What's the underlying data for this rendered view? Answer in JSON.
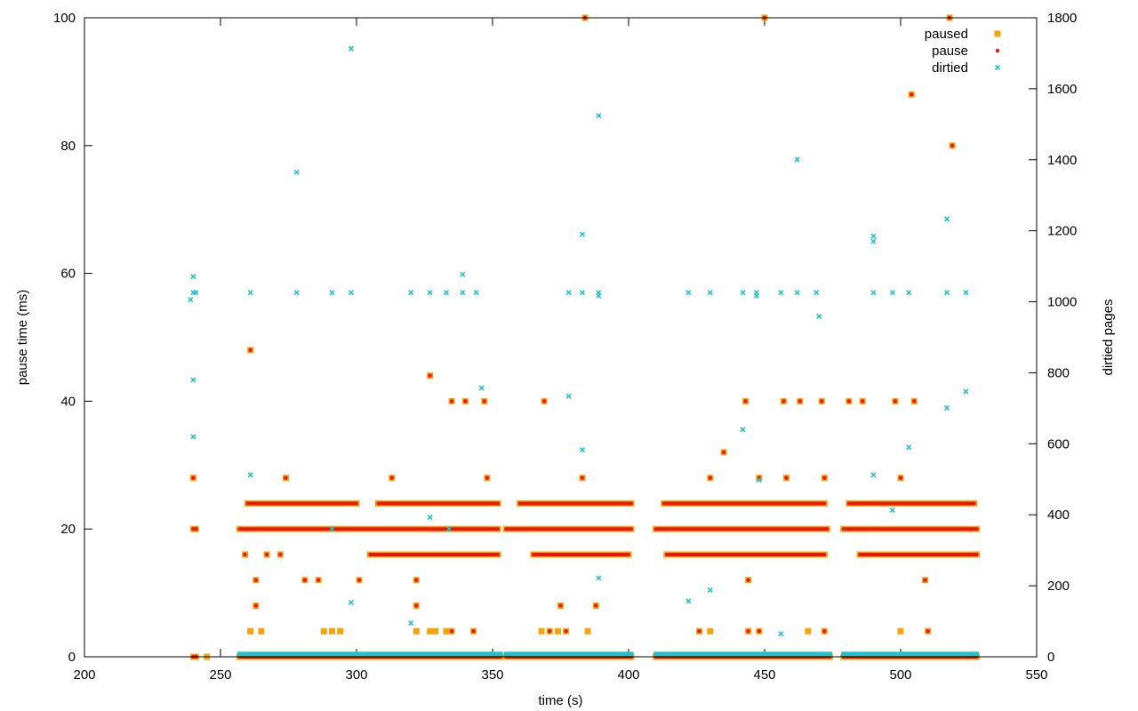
{
  "chart_data": {
    "type": "scatter",
    "xlabel": "time (s)",
    "ylabel": "pause time (ms)",
    "y2label": "dirtied pages",
    "xlim": [
      200,
      550
    ],
    "ylim": [
      0,
      100
    ],
    "y2lim": [
      0,
      1800
    ],
    "x_ticks": [
      200,
      250,
      300,
      350,
      400,
      450,
      500,
      550
    ],
    "y_ticks": [
      0,
      20,
      40,
      60,
      80,
      100
    ],
    "y2_ticks": [
      0,
      200,
      400,
      600,
      800,
      1000,
      1200,
      1400,
      1600,
      1800
    ],
    "legend_position": "top-right",
    "grid": false,
    "colors": {
      "paused": "#f5a30a",
      "pause": "#e8170c",
      "dirtied": "#1fc2c8"
    },
    "series": [
      {
        "name": "paused",
        "axis": "y",
        "marker": "square",
        "points": [
          [
            240,
            28
          ],
          [
            240,
            20
          ],
          [
            241,
            20
          ],
          [
            240,
            0
          ],
          [
            241,
            0
          ],
          [
            245,
            0
          ],
          [
            261,
            48
          ],
          [
            263,
            12
          ],
          [
            263,
            8
          ],
          [
            261,
            4
          ],
          [
            265,
            4
          ],
          [
            259,
            16
          ],
          [
            267,
            16
          ],
          [
            272,
            16
          ],
          [
            260,
            24
          ],
          [
            274,
            28
          ],
          [
            281,
            12
          ],
          [
            286,
            12
          ],
          [
            288,
            4
          ],
          [
            291,
            4
          ],
          [
            294,
            4
          ],
          [
            301,
            12
          ],
          [
            313,
            28
          ],
          [
            322,
            12
          ],
          [
            322,
            8
          ],
          [
            322,
            4
          ],
          [
            327,
            44
          ],
          [
            327,
            4
          ],
          [
            329,
            4
          ],
          [
            333,
            4
          ],
          [
            335,
            4
          ],
          [
            335,
            40
          ],
          [
            340,
            40
          ],
          [
            343,
            4
          ],
          [
            347,
            40
          ],
          [
            348,
            28
          ],
          [
            369,
            40
          ],
          [
            368,
            4
          ],
          [
            371,
            4
          ],
          [
            375,
            8
          ],
          [
            374,
            4
          ],
          [
            377,
            4
          ],
          [
            383,
            28
          ],
          [
            385,
            4
          ],
          [
            384,
            100
          ],
          [
            388,
            8
          ],
          [
            426,
            4
          ],
          [
            430,
            28
          ],
          [
            430,
            4
          ],
          [
            435,
            32
          ],
          [
            443,
            40
          ],
          [
            444,
            12
          ],
          [
            444,
            4
          ],
          [
            448,
            28
          ],
          [
            448,
            4
          ],
          [
            450,
            100
          ],
          [
            457,
            40
          ],
          [
            458,
            28
          ],
          [
            463,
            40
          ],
          [
            466,
            4
          ],
          [
            471,
            40
          ],
          [
            472,
            28
          ],
          [
            472,
            4
          ],
          [
            481,
            40
          ],
          [
            486,
            40
          ],
          [
            498,
            40
          ],
          [
            500,
            28
          ],
          [
            500,
            4
          ],
          [
            504,
            88
          ],
          [
            505,
            40
          ],
          [
            509,
            12
          ],
          [
            510,
            4
          ],
          [
            518,
            100
          ],
          [
            519,
            80
          ]
        ],
        "bands": [
          {
            "y": 0,
            "segments": [
              [
                257,
                353
              ],
              [
                355,
                401
              ],
              [
                410,
                474
              ],
              [
                479,
                528
              ]
            ]
          },
          {
            "y": 16,
            "segments": [
              [
                305,
                352
              ],
              [
                365,
                400
              ],
              [
                414,
                472
              ],
              [
                485,
                528
              ]
            ]
          },
          {
            "y": 20,
            "segments": [
              [
                257,
                352
              ],
              [
                355,
                401
              ],
              [
                410,
                473
              ],
              [
                479,
                528
              ]
            ]
          },
          {
            "y": 24,
            "segments": [
              [
                260,
                300
              ],
              [
                308,
                352
              ],
              [
                360,
                401
              ],
              [
                413,
                472
              ],
              [
                481,
                527
              ]
            ]
          }
        ]
      },
      {
        "name": "pause",
        "axis": "y",
        "marker": "dot",
        "points": [
          [
            240,
            28
          ],
          [
            240,
            20
          ],
          [
            241,
            20
          ],
          [
            240,
            0
          ],
          [
            241,
            0
          ],
          [
            261,
            48
          ],
          [
            263,
            12
          ],
          [
            263,
            8
          ],
          [
            259,
            16
          ],
          [
            267,
            16
          ],
          [
            272,
            16
          ],
          [
            260,
            24
          ],
          [
            274,
            28
          ],
          [
            281,
            12
          ],
          [
            286,
            12
          ],
          [
            301,
            12
          ],
          [
            313,
            28
          ],
          [
            322,
            12
          ],
          [
            322,
            8
          ],
          [
            327,
            44
          ],
          [
            335,
            4
          ],
          [
            335,
            40
          ],
          [
            340,
            40
          ],
          [
            343,
            4
          ],
          [
            347,
            40
          ],
          [
            348,
            28
          ],
          [
            369,
            40
          ],
          [
            371,
            4
          ],
          [
            375,
            8
          ],
          [
            377,
            4
          ],
          [
            383,
            28
          ],
          [
            384,
            100
          ],
          [
            388,
            8
          ],
          [
            426,
            4
          ],
          [
            430,
            28
          ],
          [
            435,
            32
          ],
          [
            443,
            40
          ],
          [
            444,
            12
          ],
          [
            444,
            4
          ],
          [
            448,
            28
          ],
          [
            448,
            4
          ],
          [
            450,
            100
          ],
          [
            457,
            40
          ],
          [
            458,
            28
          ],
          [
            463,
            40
          ],
          [
            471,
            40
          ],
          [
            472,
            28
          ],
          [
            472,
            4
          ],
          [
            481,
            40
          ],
          [
            486,
            40
          ],
          [
            498,
            40
          ],
          [
            500,
            28
          ],
          [
            504,
            88
          ],
          [
            505,
            40
          ],
          [
            509,
            12
          ],
          [
            510,
            4
          ],
          [
            518,
            100
          ],
          [
            519,
            80
          ]
        ],
        "bands": [
          {
            "y": 0,
            "segments": [
              [
                257,
                353
              ],
              [
                355,
                401
              ],
              [
                410,
                474
              ],
              [
                479,
                528
              ]
            ]
          },
          {
            "y": 16,
            "segments": [
              [
                305,
                352
              ],
              [
                365,
                400
              ],
              [
                414,
                472
              ],
              [
                485,
                528
              ]
            ]
          },
          {
            "y": 20,
            "segments": [
              [
                257,
                352
              ],
              [
                355,
                401
              ],
              [
                410,
                473
              ],
              [
                479,
                528
              ]
            ]
          },
          {
            "y": 24,
            "segments": [
              [
                260,
                300
              ],
              [
                308,
                352
              ],
              [
                360,
                401
              ],
              [
                413,
                472
              ],
              [
                481,
                527
              ]
            ]
          }
        ]
      },
      {
        "name": "dirtied",
        "axis": "y2",
        "marker": "cross",
        "points": [
          [
            239,
            1006
          ],
          [
            240,
            1071
          ],
          [
            240,
            1026
          ],
          [
            241,
            1026
          ],
          [
            240,
            780
          ],
          [
            240,
            620
          ],
          [
            261,
            1026
          ],
          [
            261,
            512
          ],
          [
            278,
            1365
          ],
          [
            278,
            1026
          ],
          [
            291,
            1026
          ],
          [
            291,
            360
          ],
          [
            298,
            1713
          ],
          [
            298,
            1026
          ],
          [
            298,
            153
          ],
          [
            320,
            1026
          ],
          [
            320,
            95
          ],
          [
            327,
            1026
          ],
          [
            327,
            393
          ],
          [
            333,
            1026
          ],
          [
            334,
            360
          ],
          [
            339,
            1077
          ],
          [
            339,
            1026
          ],
          [
            344,
            1026
          ],
          [
            346,
            757
          ],
          [
            378,
            1026
          ],
          [
            378,
            734
          ],
          [
            383,
            1190
          ],
          [
            383,
            1026
          ],
          [
            383,
            583
          ],
          [
            389,
            1524
          ],
          [
            389,
            1026
          ],
          [
            389,
            1017
          ],
          [
            389,
            222
          ],
          [
            422,
            1026
          ],
          [
            422,
            157
          ],
          [
            430,
            1026
          ],
          [
            430,
            188
          ],
          [
            442,
            1026
          ],
          [
            442,
            640
          ],
          [
            447,
            1026
          ],
          [
            447,
            1017
          ],
          [
            448,
            498
          ],
          [
            456,
            1026
          ],
          [
            456,
            65
          ],
          [
            462,
            1401
          ],
          [
            462,
            1026
          ],
          [
            469,
            1026
          ],
          [
            470,
            959
          ],
          [
            490,
            1185
          ],
          [
            490,
            1170
          ],
          [
            490,
            1026
          ],
          [
            490,
            512
          ],
          [
            497,
            1026
          ],
          [
            497,
            413
          ],
          [
            503,
            1026
          ],
          [
            503,
            590
          ],
          [
            517,
            1233
          ],
          [
            517,
            1026
          ],
          [
            517,
            701
          ],
          [
            524,
            1026
          ],
          [
            524,
            747
          ]
        ],
        "bands": [
          {
            "y": 8,
            "segments": [
              [
                257,
                353
              ],
              [
                355,
                401
              ],
              [
                410,
                474
              ],
              [
                479,
                528
              ]
            ]
          }
        ]
      }
    ]
  }
}
